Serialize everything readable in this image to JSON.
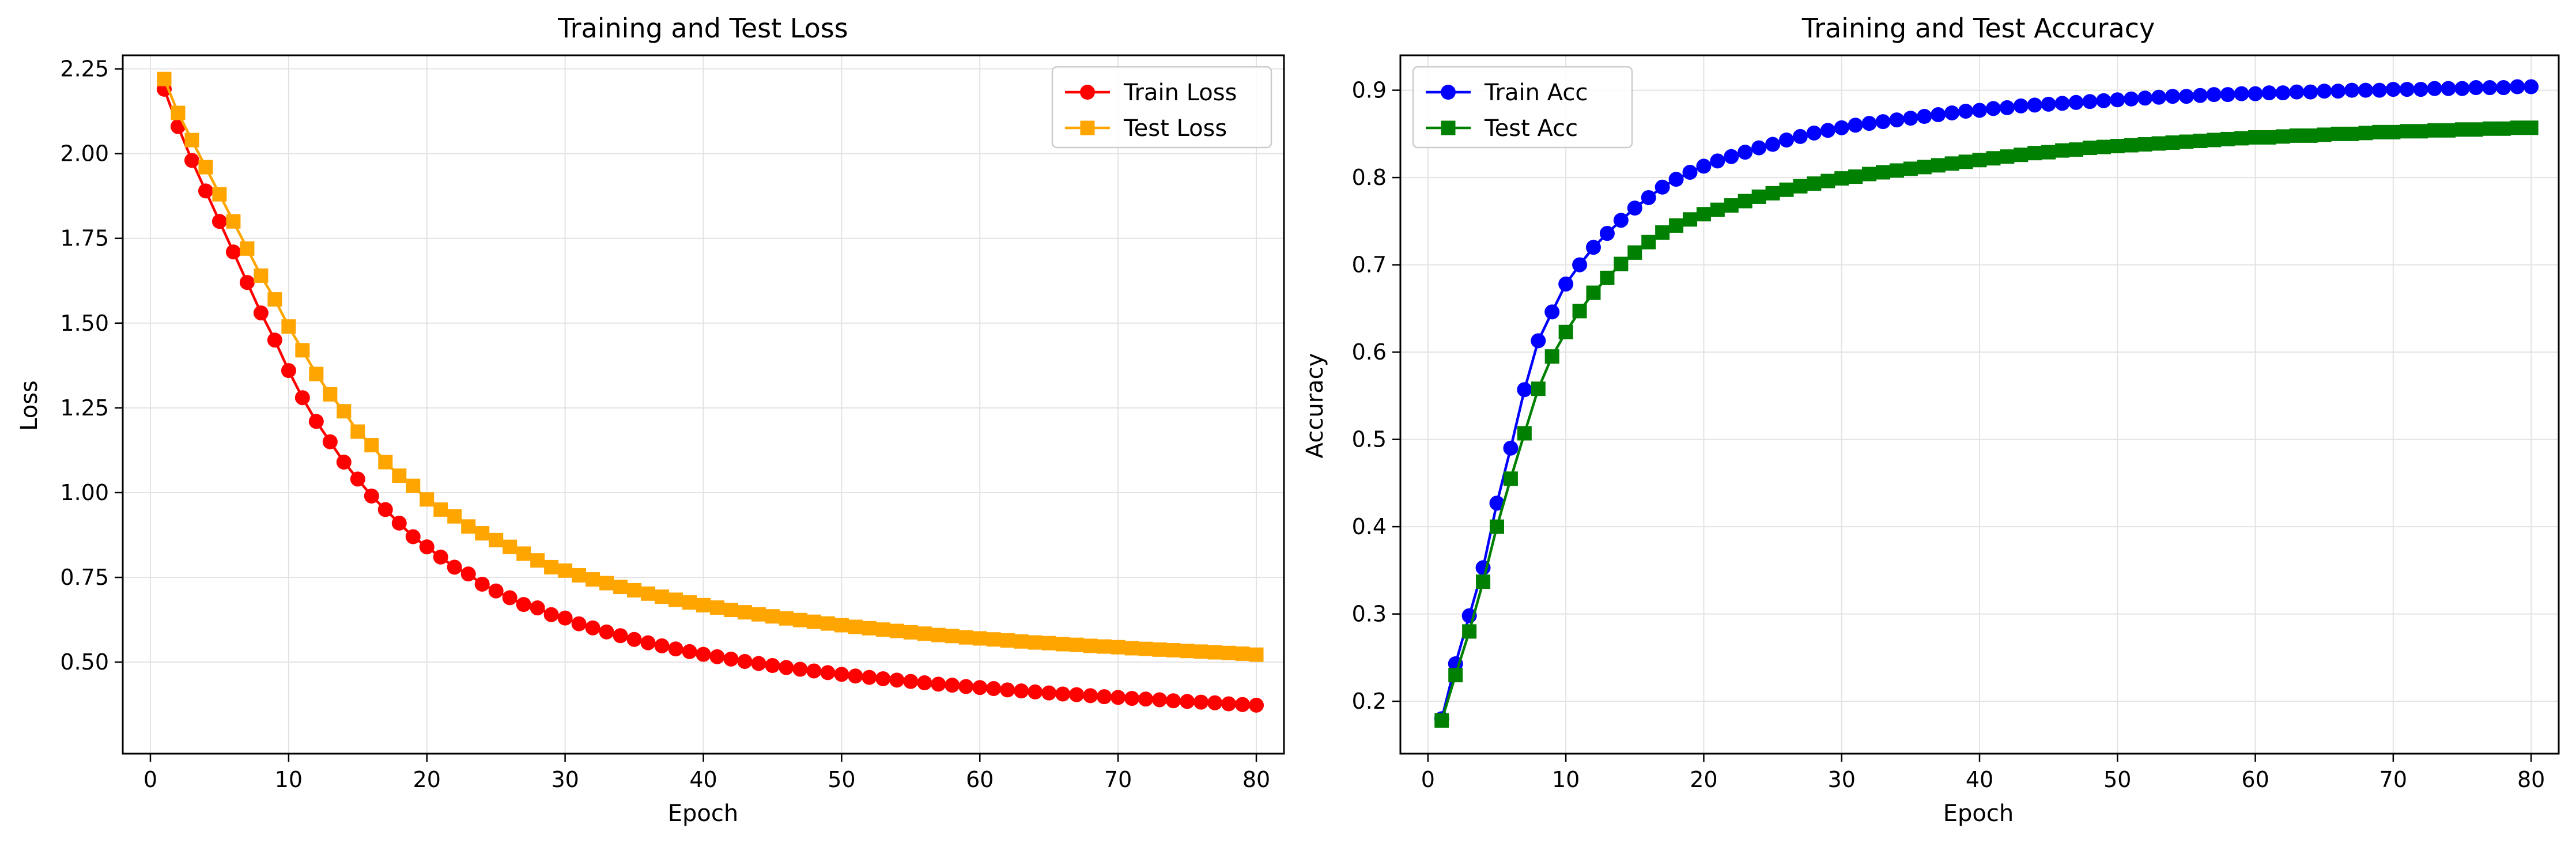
{
  "chart_data": [
    {
      "type": "line",
      "title": "Training and Test Loss",
      "xlabel": "Epoch",
      "ylabel": "Loss",
      "xlim": [
        -2,
        82
      ],
      "ylim": [
        0.23,
        2.29
      ],
      "xticks": [
        "0",
        "10",
        "20",
        "30",
        "40",
        "50",
        "60",
        "70",
        "80"
      ],
      "yticks": [
        "0.50",
        "0.75",
        "1.00",
        "1.25",
        "1.50",
        "1.75",
        "2.00",
        "2.25"
      ],
      "grid": true,
      "legend_position": "top-right",
      "x": [
        1,
        2,
        3,
        4,
        5,
        6,
        7,
        8,
        9,
        10,
        11,
        12,
        13,
        14,
        15,
        16,
        17,
        18,
        19,
        20,
        21,
        22,
        23,
        24,
        25,
        26,
        27,
        28,
        29,
        30,
        31,
        32,
        33,
        34,
        35,
        36,
        37,
        38,
        39,
        40,
        41,
        42,
        43,
        44,
        45,
        46,
        47,
        48,
        49,
        50,
        51,
        52,
        53,
        54,
        55,
        56,
        57,
        58,
        59,
        60,
        61,
        62,
        63,
        64,
        65,
        66,
        67,
        68,
        69,
        70,
        71,
        72,
        73,
        74,
        75,
        76,
        77,
        78,
        79,
        80
      ],
      "series": [
        {
          "name": "Train Loss",
          "color": "#ff0000",
          "marker": "circle",
          "values": [
            2.19,
            2.08,
            1.98,
            1.89,
            1.8,
            1.71,
            1.62,
            1.53,
            1.45,
            1.36,
            1.28,
            1.21,
            1.15,
            1.09,
            1.04,
            0.99,
            0.95,
            0.91,
            0.87,
            0.84,
            0.81,
            0.78,
            0.76,
            0.73,
            0.71,
            0.69,
            0.67,
            0.66,
            0.64,
            0.63,
            0.613,
            0.601,
            0.589,
            0.578,
            0.567,
            0.557,
            0.548,
            0.539,
            0.531,
            0.523,
            0.516,
            0.509,
            0.502,
            0.496,
            0.49,
            0.484,
            0.479,
            0.474,
            0.469,
            0.464,
            0.459,
            0.455,
            0.451,
            0.447,
            0.443,
            0.439,
            0.435,
            0.432,
            0.428,
            0.425,
            0.422,
            0.418,
            0.415,
            0.412,
            0.409,
            0.406,
            0.404,
            0.401,
            0.398,
            0.396,
            0.393,
            0.391,
            0.389,
            0.386,
            0.384,
            0.382,
            0.38,
            0.377,
            0.375,
            0.373
          ]
        },
        {
          "name": "Test Loss",
          "color": "#ffa500",
          "marker": "square",
          "values": [
            2.22,
            2.12,
            2.04,
            1.96,
            1.88,
            1.8,
            1.72,
            1.64,
            1.57,
            1.49,
            1.42,
            1.35,
            1.29,
            1.24,
            1.18,
            1.14,
            1.09,
            1.05,
            1.02,
            0.98,
            0.95,
            0.93,
            0.9,
            0.88,
            0.86,
            0.84,
            0.82,
            0.8,
            0.78,
            0.77,
            0.756,
            0.744,
            0.733,
            0.722,
            0.712,
            0.702,
            0.693,
            0.684,
            0.676,
            0.668,
            0.661,
            0.654,
            0.647,
            0.641,
            0.635,
            0.629,
            0.624,
            0.619,
            0.614,
            0.609,
            0.604,
            0.6,
            0.596,
            0.592,
            0.588,
            0.584,
            0.58,
            0.577,
            0.573,
            0.57,
            0.567,
            0.564,
            0.561,
            0.558,
            0.556,
            0.553,
            0.551,
            0.548,
            0.546,
            0.544,
            0.541,
            0.539,
            0.537,
            0.535,
            0.533,
            0.531,
            0.529,
            0.527,
            0.525,
            0.522
          ]
        }
      ]
    },
    {
      "type": "line",
      "title": "Training and Test Accuracy",
      "xlabel": "Epoch",
      "ylabel": "Accuracy",
      "xlim": [
        -2,
        82
      ],
      "ylim": [
        0.14,
        0.94
      ],
      "xticks": [
        "0",
        "10",
        "20",
        "30",
        "40",
        "50",
        "60",
        "70",
        "80"
      ],
      "yticks": [
        "0.2",
        "0.3",
        "0.4",
        "0.5",
        "0.6",
        "0.7",
        "0.8",
        "0.9"
      ],
      "grid": true,
      "legend_position": "top-left",
      "x": [
        1,
        2,
        3,
        4,
        5,
        6,
        7,
        8,
        9,
        10,
        11,
        12,
        13,
        14,
        15,
        16,
        17,
        18,
        19,
        20,
        21,
        22,
        23,
        24,
        25,
        26,
        27,
        28,
        29,
        30,
        31,
        32,
        33,
        34,
        35,
        36,
        37,
        38,
        39,
        40,
        41,
        42,
        43,
        44,
        45,
        46,
        47,
        48,
        49,
        50,
        51,
        52,
        53,
        54,
        55,
        56,
        57,
        58,
        59,
        60,
        61,
        62,
        63,
        64,
        65,
        66,
        67,
        68,
        69,
        70,
        71,
        72,
        73,
        74,
        75,
        76,
        77,
        78,
        79,
        80
      ],
      "series": [
        {
          "name": "Train Acc",
          "color": "#0000ff",
          "marker": "circle",
          "values": [
            0.18,
            0.243,
            0.298,
            0.353,
            0.427,
            0.49,
            0.557,
            0.613,
            0.646,
            0.678,
            0.7,
            0.72,
            0.736,
            0.751,
            0.765,
            0.777,
            0.789,
            0.798,
            0.806,
            0.813,
            0.819,
            0.824,
            0.829,
            0.834,
            0.838,
            0.843,
            0.847,
            0.851,
            0.854,
            0.857,
            0.86,
            0.862,
            0.864,
            0.866,
            0.868,
            0.87,
            0.872,
            0.874,
            0.876,
            0.877,
            0.879,
            0.88,
            0.882,
            0.883,
            0.884,
            0.885,
            0.886,
            0.887,
            0.888,
            0.889,
            0.89,
            0.891,
            0.892,
            0.893,
            0.893,
            0.894,
            0.895,
            0.895,
            0.896,
            0.896,
            0.897,
            0.897,
            0.898,
            0.898,
            0.899,
            0.899,
            0.9,
            0.9,
            0.9,
            0.901,
            0.901,
            0.901,
            0.902,
            0.902,
            0.902,
            0.903,
            0.903,
            0.903,
            0.904,
            0.904
          ]
        },
        {
          "name": "Test Acc",
          "color": "#008000",
          "marker": "square",
          "values": [
            0.178,
            0.23,
            0.28,
            0.337,
            0.4,
            0.455,
            0.507,
            0.558,
            0.595,
            0.623,
            0.647,
            0.668,
            0.685,
            0.701,
            0.714,
            0.726,
            0.737,
            0.745,
            0.752,
            0.758,
            0.763,
            0.768,
            0.773,
            0.778,
            0.782,
            0.786,
            0.79,
            0.793,
            0.796,
            0.799,
            0.801,
            0.804,
            0.806,
            0.808,
            0.81,
            0.812,
            0.814,
            0.816,
            0.818,
            0.82,
            0.822,
            0.824,
            0.826,
            0.828,
            0.829,
            0.831,
            0.832,
            0.834,
            0.835,
            0.836,
            0.837,
            0.838,
            0.839,
            0.84,
            0.841,
            0.842,
            0.843,
            0.844,
            0.845,
            0.846,
            0.846,
            0.847,
            0.848,
            0.848,
            0.849,
            0.85,
            0.85,
            0.851,
            0.852,
            0.852,
            0.853,
            0.853,
            0.854,
            0.854,
            0.855,
            0.855,
            0.856,
            0.856,
            0.857,
            0.857
          ]
        }
      ]
    }
  ]
}
